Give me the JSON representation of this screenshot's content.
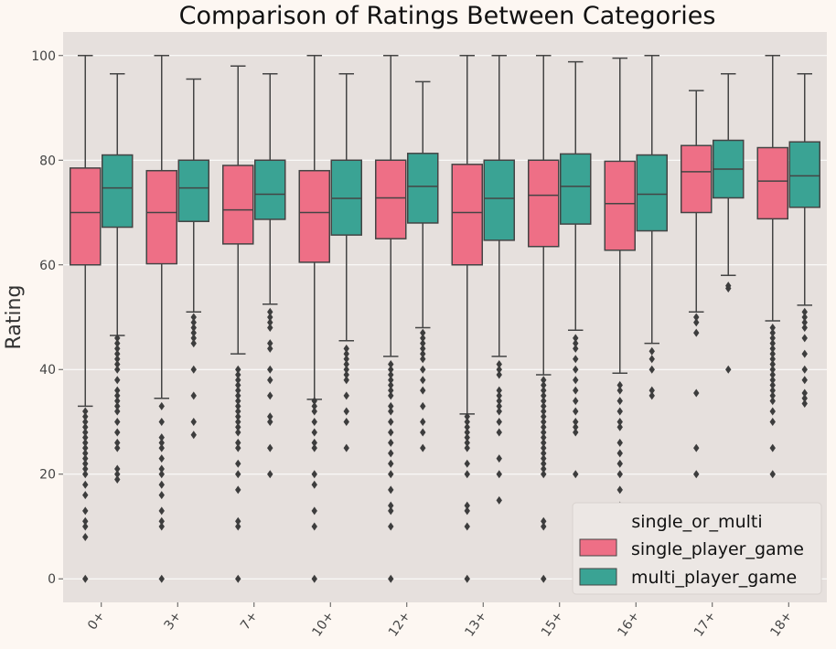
{
  "chart_data": {
    "type": "boxplot",
    "title": "Comparison of Ratings Between Categories",
    "xlabel": "",
    "ylabel": "Rating",
    "ylim": [
      -4.5,
      104.5
    ],
    "yticks": [
      0,
      20,
      40,
      60,
      80,
      100
    ],
    "grid": true,
    "legend_placement": "lower-right",
    "legend_title": "single_or_multi",
    "categories": [
      "0+",
      "3+",
      "7+",
      "10+",
      "12+",
      "13+",
      "15+",
      "16+",
      "17+",
      "18+"
    ],
    "series": [
      {
        "name": "single_player_game",
        "color": "#ee6f86",
        "boxes": [
          {
            "whislo": 33,
            "q1": 60,
            "med": 70,
            "q3": 78.5,
            "whishi": 100,
            "fliers": [
              0,
              8,
              10,
              11,
              13,
              16,
              18,
              20,
              21,
              22,
              23,
              24,
              25,
              26,
              27,
              28,
              29,
              30,
              31,
              32
            ]
          },
          {
            "whislo": 34.5,
            "q1": 60.2,
            "med": 70,
            "q3": 78,
            "whishi": 100,
            "fliers": [
              0,
              10,
              11,
              13,
              16,
              18,
              20,
              21,
              23,
              25,
              26,
              27,
              30,
              33
            ]
          },
          {
            "whislo": 43,
            "q1": 64,
            "med": 70.5,
            "q3": 79,
            "whishi": 98,
            "fliers": [
              0,
              10,
              11,
              17,
              20,
              22,
              25,
              26,
              28,
              29,
              30,
              31,
              32,
              33,
              34,
              35,
              36,
              37,
              38,
              39,
              40
            ]
          },
          {
            "whislo": 34.3,
            "q1": 60.5,
            "med": 70,
            "q3": 78,
            "whishi": 100,
            "fliers": [
              0,
              10,
              13,
              18,
              20,
              25,
              26,
              28,
              30,
              32,
              33,
              34
            ]
          },
          {
            "whislo": 42.5,
            "q1": 65,
            "med": 72.8,
            "q3": 80,
            "whishi": 100,
            "fliers": [
              0,
              10,
              13,
              14,
              17,
              20,
              22,
              24,
              26,
              28,
              30,
              32,
              33,
              35,
              36,
              37,
              38,
              39,
              40,
              41
            ]
          },
          {
            "whislo": 31.5,
            "q1": 60,
            "med": 70,
            "q3": 79.2,
            "whishi": 100,
            "fliers": [
              0,
              10,
              13,
              14,
              20,
              22,
              25,
              26,
              27,
              28,
              29,
              30,
              31
            ]
          },
          {
            "whislo": 39,
            "q1": 63.5,
            "med": 73.3,
            "q3": 80,
            "whishi": 100,
            "fliers": [
              0,
              10,
              11,
              20,
              21,
              22,
              23,
              24,
              25,
              26,
              27,
              28,
              29,
              30,
              31,
              32,
              33,
              34,
              35,
              36,
              37,
              38
            ]
          },
          {
            "whislo": 39.3,
            "q1": 62.8,
            "med": 71.7,
            "q3": 79.8,
            "whishi": 99.5,
            "fliers": [
              0,
              10,
              14,
              17,
              20,
              22,
              24,
              26,
              29,
              30,
              32,
              34,
              36,
              37
            ]
          },
          {
            "whislo": 51,
            "q1": 70,
            "med": 77.8,
            "q3": 82.8,
            "whishi": 93.3,
            "fliers": [
              20,
              25,
              35.5,
              47,
              49,
              50
            ]
          },
          {
            "whislo": 49.3,
            "q1": 68.8,
            "med": 76,
            "q3": 82.4,
            "whishi": 100,
            "fliers": [
              20,
              25,
              30,
              32,
              34,
              35,
              36,
              37,
              38,
              39,
              40,
              41,
              42,
              43,
              44,
              45,
              46,
              47,
              48
            ]
          }
        ]
      },
      {
        "name": "multi_player_game",
        "color": "#3aa394",
        "boxes": [
          {
            "whislo": 46.5,
            "q1": 67.2,
            "med": 74.7,
            "q3": 81,
            "whishi": 96.5,
            "fliers": [
              19,
              20,
              21,
              25,
              26,
              28,
              30,
              32,
              33,
              34,
              35,
              36,
              38,
              40,
              41,
              42,
              43,
              44,
              45,
              46
            ]
          },
          {
            "whislo": 51,
            "q1": 68.3,
            "med": 74.7,
            "q3": 80,
            "whishi": 95.5,
            "fliers": [
              27.5,
              30,
              35,
              40,
              45,
              46,
              47,
              48,
              49,
              50
            ]
          },
          {
            "whislo": 52.5,
            "q1": 68.7,
            "med": 73.5,
            "q3": 80,
            "whishi": 96.5,
            "fliers": [
              20,
              25,
              30,
              31,
              35,
              38,
              40,
              44,
              45,
              48,
              49,
              50,
              51
            ]
          },
          {
            "whislo": 45.5,
            "q1": 65.7,
            "med": 72.7,
            "q3": 80,
            "whishi": 96.5,
            "fliers": [
              25,
              30,
              32,
              35,
              38,
              39,
              40,
              41,
              42,
              43,
              44
            ]
          },
          {
            "whislo": 48,
            "q1": 68,
            "med": 75,
            "q3": 81.3,
            "whishi": 95,
            "fliers": [
              25,
              28,
              30,
              33,
              36,
              38,
              40,
              42,
              43,
              44,
              45,
              46,
              47
            ]
          },
          {
            "whislo": 42.5,
            "q1": 64.7,
            "med": 72.7,
            "q3": 80,
            "whishi": 100,
            "fliers": [
              15,
              20,
              23,
              28,
              30,
              32,
              33,
              34,
              35,
              36,
              39,
              40,
              41
            ]
          },
          {
            "whislo": 47.5,
            "q1": 67.8,
            "med": 75,
            "q3": 81.2,
            "whishi": 98.8,
            "fliers": [
              20,
              28,
              29,
              30,
              32,
              34,
              36,
              38,
              40,
              42,
              44,
              45,
              46
            ]
          },
          {
            "whislo": 45,
            "q1": 66.5,
            "med": 73.5,
            "q3": 81,
            "whishi": 100,
            "fliers": [
              35,
              36,
              40,
              42,
              43.5
            ]
          },
          {
            "whislo": 58,
            "q1": 72.8,
            "med": 78.3,
            "q3": 83.8,
            "whishi": 96.5,
            "fliers": [
              40,
              55.5,
              56
            ]
          },
          {
            "whislo": 52.3,
            "q1": 71,
            "med": 77,
            "q3": 83.5,
            "whishi": 96.5,
            "fliers": [
              33.5,
              34.5,
              35.5,
              38,
              40,
              43,
              46,
              48,
              49,
              50,
              51
            ]
          }
        ]
      }
    ]
  }
}
